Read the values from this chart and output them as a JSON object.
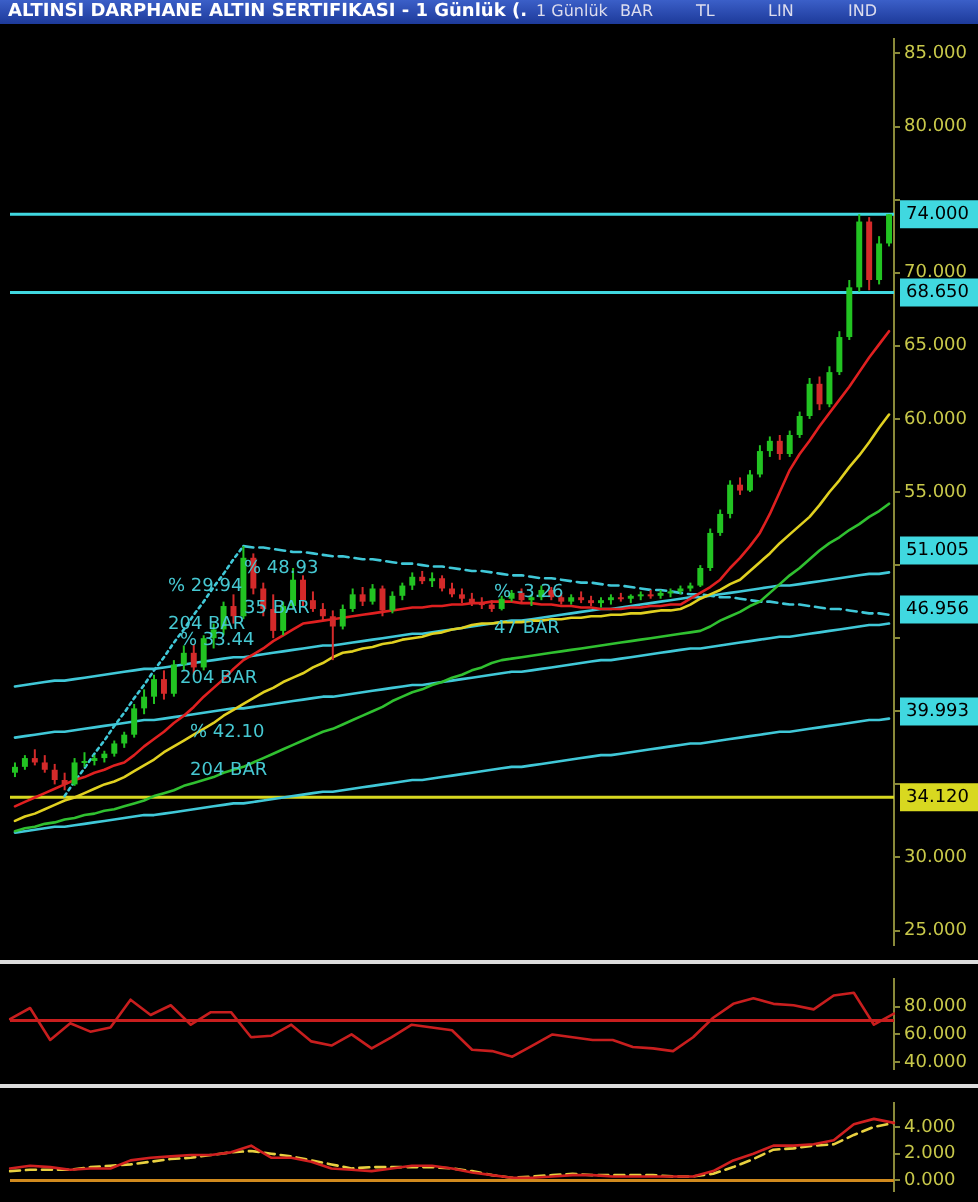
{
  "chart_data": [
    {
      "type": "candlestick",
      "title": "ALTINSI DARPHANE ALTIN SERTIFIKASI - 1 Günlük (.",
      "annotations": [
        "1 Günlük",
        "BAR",
        "TL",
        "LIN",
        "IND",
        "% 29.94",
        "204 BAR",
        "% 48.93",
        "35 BAR",
        "% 33.44",
        "204 BAR",
        "% 42.10",
        "204 BAR",
        "% -3.26",
        "47 BAR",
        {
          "text": "51.005",
          "y": 51.005
        },
        {
          "text": "46.956",
          "y": 46.956
        },
        {
          "text": "39.993",
          "y": 39.993
        }
      ],
      "categories": [
        null,
        null,
        null,
        null,
        null,
        null,
        null,
        null,
        null,
        null,
        null,
        null,
        null,
        null,
        null,
        null,
        null,
        null,
        null,
        null,
        null,
        null,
        null,
        null,
        null,
        null,
        null,
        null,
        null,
        null,
        null,
        null,
        null,
        null,
        null,
        null,
        null,
        null,
        null,
        null,
        null,
        null,
        null,
        null,
        null,
        null,
        null,
        null,
        null,
        null,
        null,
        null,
        null,
        null,
        null,
        null,
        null,
        null,
        null,
        null,
        null,
        null,
        null,
        null,
        null,
        null,
        null,
        null,
        null,
        null,
        null,
        null,
        null,
        null,
        null,
        null,
        null,
        null,
        null,
        null,
        null,
        null,
        null,
        null,
        null,
        null,
        null,
        null,
        null
      ],
      "ohlc": [
        [
          35.8,
          36.5,
          35.5,
          36.2
        ],
        [
          36.2,
          37.0,
          36.0,
          36.8
        ],
        [
          36.8,
          37.4,
          36.3,
          36.5
        ],
        [
          36.5,
          37.0,
          35.8,
          36.0
        ],
        [
          36.0,
          36.4,
          35.0,
          35.3
        ],
        [
          35.3,
          35.8,
          34.6,
          35.0
        ],
        [
          35.0,
          36.8,
          34.9,
          36.5
        ],
        [
          36.5,
          37.2,
          36.2,
          36.6
        ],
        [
          36.6,
          37.0,
          36.3,
          36.8
        ],
        [
          36.8,
          37.3,
          36.5,
          37.1
        ],
        [
          37.1,
          38.0,
          36.9,
          37.8
        ],
        [
          37.8,
          38.6,
          37.5,
          38.4
        ],
        [
          38.4,
          40.5,
          38.2,
          40.2
        ],
        [
          40.2,
          41.5,
          39.8,
          41.0
        ],
        [
          41.0,
          42.5,
          40.5,
          42.2
        ],
        [
          42.2,
          42.8,
          40.8,
          41.2
        ],
        [
          41.2,
          43.5,
          41.0,
          43.2
        ],
        [
          43.2,
          44.5,
          42.8,
          44.0
        ],
        [
          44.0,
          44.6,
          42.5,
          43.0
        ],
        [
          43.0,
          45.2,
          42.8,
          45.0
        ],
        [
          45.0,
          46.0,
          44.3,
          45.6
        ],
        [
          45.6,
          47.5,
          45.2,
          47.2
        ],
        [
          47.2,
          48.0,
          46.0,
          46.5
        ],
        [
          46.5,
          51.3,
          46.3,
          50.5
        ],
        [
          50.5,
          50.8,
          48.0,
          48.4
        ],
        [
          48.4,
          48.8,
          46.5,
          47.0
        ],
        [
          47.0,
          48.0,
          45.0,
          45.5
        ],
        [
          45.5,
          47.5,
          45.2,
          47.2
        ],
        [
          47.2,
          49.8,
          47.0,
          49.0
        ],
        [
          49.0,
          49.3,
          47.2,
          47.6
        ],
        [
          47.6,
          48.2,
          46.8,
          47.0
        ],
        [
          47.0,
          47.4,
          46.2,
          46.5
        ],
        [
          46.5,
          46.9,
          43.5,
          45.8
        ],
        [
          45.8,
          47.3,
          45.6,
          47.0
        ],
        [
          47.0,
          48.4,
          46.8,
          48.0
        ],
        [
          48.0,
          48.5,
          47.2,
          47.5
        ],
        [
          47.5,
          48.7,
          47.3,
          48.4
        ],
        [
          48.4,
          48.6,
          46.5,
          46.9
        ],
        [
          46.9,
          48.2,
          46.7,
          47.9
        ],
        [
          47.9,
          48.8,
          47.6,
          48.6
        ],
        [
          48.6,
          49.5,
          48.3,
          49.2
        ],
        [
          49.2,
          49.6,
          48.7,
          48.9
        ],
        [
          48.9,
          49.5,
          48.5,
          49.1
        ],
        [
          49.1,
          49.3,
          48.2,
          48.4
        ],
        [
          48.4,
          48.8,
          47.8,
          48.0
        ],
        [
          48.0,
          48.4,
          47.4,
          47.7
        ],
        [
          47.7,
          48.1,
          47.2,
          47.4
        ],
        [
          47.4,
          47.8,
          47.0,
          47.3
        ],
        [
          47.3,
          47.6,
          46.8,
          47.0
        ],
        [
          47.0,
          47.9,
          46.9,
          47.7
        ],
        [
          47.7,
          48.3,
          47.5,
          48.1
        ],
        [
          48.1,
          48.4,
          47.4,
          47.6
        ],
        [
          47.6,
          48.0,
          47.2,
          47.8
        ],
        [
          47.8,
          48.6,
          47.6,
          48.3
        ],
        [
          48.3,
          48.5,
          47.6,
          47.8
        ],
        [
          47.8,
          48.1,
          47.3,
          47.5
        ],
        [
          47.5,
          48.0,
          47.3,
          47.8
        ],
        [
          47.8,
          48.2,
          47.4,
          47.6
        ],
        [
          47.6,
          47.9,
          47.2,
          47.4
        ],
        [
          47.4,
          47.8,
          47.1,
          47.6
        ],
        [
          47.6,
          48.0,
          47.3,
          47.8
        ],
        [
          47.8,
          48.1,
          47.5,
          47.7
        ],
        [
          47.7,
          48.0,
          47.4,
          47.9
        ],
        [
          47.9,
          48.2,
          47.6,
          48.0
        ],
        [
          48.0,
          48.3,
          47.7,
          47.9
        ],
        [
          47.9,
          48.3,
          47.7,
          48.1
        ],
        [
          48.1,
          48.4,
          47.8,
          48.2
        ],
        [
          48.2,
          48.6,
          48.0,
          48.4
        ],
        [
          48.4,
          48.8,
          48.2,
          48.6
        ],
        [
          48.6,
          50.0,
          48.5,
          49.8
        ],
        [
          49.8,
          52.5,
          49.6,
          52.2
        ],
        [
          52.2,
          53.8,
          52.0,
          53.5
        ],
        [
          53.5,
          55.8,
          53.2,
          55.5
        ],
        [
          55.5,
          56.0,
          54.8,
          55.1
        ],
        [
          55.1,
          56.5,
          55.0,
          56.2
        ],
        [
          56.2,
          58.2,
          56.0,
          57.8
        ],
        [
          57.8,
          58.8,
          57.4,
          58.5
        ],
        [
          58.5,
          58.9,
          57.2,
          57.6
        ],
        [
          57.6,
          59.2,
          57.4,
          58.9
        ],
        [
          58.9,
          60.5,
          58.7,
          60.2
        ],
        [
          60.2,
          62.8,
          60.0,
          62.4
        ],
        [
          62.4,
          62.9,
          60.6,
          61.0
        ],
        [
          61.0,
          63.6,
          60.8,
          63.2
        ],
        [
          63.2,
          66.0,
          63.0,
          65.6
        ],
        [
          65.6,
          69.5,
          65.4,
          69.0
        ],
        [
          69.0,
          74.0,
          68.7,
          73.5
        ],
        [
          73.5,
          73.8,
          68.8,
          69.5
        ],
        [
          69.5,
          72.5,
          69.2,
          72.0
        ],
        [
          72.0,
          74.0,
          71.8,
          74.0
        ]
      ],
      "colors": [
        "#22c322",
        "#22c322",
        "#d42a2a",
        "#d42a2a",
        "#d42a2a",
        "#d42a2a",
        "#22c322",
        "#22c322",
        "#22c322",
        "#22c322",
        "#22c322",
        "#22c322",
        "#22c322",
        "#22c322",
        "#22c322",
        "#d42a2a",
        "#22c322",
        "#22c322",
        "#d42a2a",
        "#22c322",
        "#22c322",
        "#22c322",
        "#d42a2a",
        "#22c322",
        "#d42a2a",
        "#d42a2a",
        "#d42a2a",
        "#22c322",
        "#22c322",
        "#d42a2a",
        "#d42a2a",
        "#d42a2a",
        "#d42a2a",
        "#22c322",
        "#22c322",
        "#d42a2a",
        "#22c322",
        "#d42a2a",
        "#22c322",
        "#22c322",
        "#22c322",
        "#d42a2a",
        "#22c322",
        "#d42a2a",
        "#d42a2a",
        "#d42a2a",
        "#d42a2a",
        "#d42a2a",
        "#d42a2a",
        "#22c322",
        "#22c322",
        "#d42a2a",
        "#22c322",
        "#22c322",
        "#d42a2a",
        "#d42a2a",
        "#22c322",
        "#d42a2a",
        "#d42a2a",
        "#22c322",
        "#22c322",
        "#d42a2a",
        "#22c322",
        "#22c322",
        "#d42a2a",
        "#22c322",
        "#22c322",
        "#22c322",
        "#22c322",
        "#22c322",
        "#22c322",
        "#22c322",
        "#22c322",
        "#d42a2a",
        "#22c322",
        "#22c322",
        "#22c322",
        "#d42a2a",
        "#22c322",
        "#22c322",
        "#22c322",
        "#d42a2a",
        "#22c322",
        "#22c322",
        "#22c322",
        "#22c322",
        "#d42a2a",
        "#22c322",
        "#22c322"
      ],
      "series": [
        {
          "type": "line",
          "color": "#e02020",
          "values": [
            33.5,
            33.8,
            34.1,
            34.4,
            34.7,
            35.0,
            35.3,
            35.5,
            35.8,
            36.0,
            36.3,
            36.5,
            37.0,
            37.6,
            38.1,
            38.6,
            39.2,
            39.7,
            40.3,
            41.0,
            41.6,
            42.2,
            42.9,
            43.5,
            43.9,
            44.3,
            44.8,
            45.2,
            45.6,
            46.0,
            46.1,
            46.2,
            46.3,
            46.4,
            46.5,
            46.6,
            46.7,
            46.8,
            46.9,
            47.0,
            47.1,
            47.1,
            47.2,
            47.2,
            47.3,
            47.3,
            47.4,
            47.4,
            47.5,
            47.5,
            47.5,
            47.4,
            47.4,
            47.3,
            47.3,
            47.2,
            47.2,
            47.1,
            47.1,
            47.0,
            47.0,
            47.0,
            47.1,
            47.1,
            47.2,
            47.2,
            47.3,
            47.3,
            47.7,
            48.1,
            48.5,
            49.0,
            49.8,
            50.5,
            51.3,
            52.2,
            53.5,
            55.0,
            56.5,
            57.6,
            58.5,
            59.5,
            60.4,
            61.3,
            62.2,
            63.2,
            64.2,
            65.1,
            66.0
          ]
        },
        {
          "type": "line",
          "color": "#e0d020",
          "values": [
            32.5,
            32.8,
            33.0,
            33.3,
            33.6,
            33.9,
            34.1,
            34.4,
            34.7,
            35.0,
            35.2,
            35.5,
            35.9,
            36.3,
            36.7,
            37.2,
            37.6,
            38.0,
            38.4,
            38.8,
            39.2,
            39.7,
            40.1,
            40.5,
            40.9,
            41.3,
            41.6,
            42.0,
            42.3,
            42.6,
            43.0,
            43.3,
            43.7,
            44.0,
            44.1,
            44.3,
            44.4,
            44.6,
            44.7,
            44.9,
            45.0,
            45.1,
            45.3,
            45.4,
            45.6,
            45.7,
            45.9,
            46.0,
            46.0,
            46.1,
            46.1,
            46.1,
            46.2,
            46.2,
            46.3,
            46.3,
            46.4,
            46.4,
            46.5,
            46.5,
            46.6,
            46.6,
            46.7,
            46.7,
            46.8,
            46.9,
            46.9,
            47.0,
            47.3,
            47.7,
            48.0,
            48.3,
            48.7,
            49.0,
            49.6,
            50.2,
            50.8,
            51.5,
            52.1,
            52.7,
            53.3,
            54.1,
            55.0,
            55.8,
            56.7,
            57.5,
            58.4,
            59.4,
            60.3
          ]
        },
        {
          "type": "line",
          "color": "#30c030",
          "values": [
            31.8,
            32.0,
            32.1,
            32.3,
            32.4,
            32.6,
            32.7,
            32.9,
            33.0,
            33.2,
            33.3,
            33.5,
            33.7,
            33.9,
            34.2,
            34.4,
            34.6,
            34.9,
            35.1,
            35.3,
            35.5,
            35.8,
            36.0,
            36.2,
            36.5,
            36.8,
            37.1,
            37.4,
            37.7,
            38.0,
            38.3,
            38.6,
            38.8,
            39.1,
            39.4,
            39.7,
            40.0,
            40.3,
            40.7,
            41.0,
            41.3,
            41.5,
            41.8,
            42.0,
            42.3,
            42.5,
            42.8,
            43.0,
            43.3,
            43.5,
            43.6,
            43.7,
            43.8,
            43.9,
            44.0,
            44.1,
            44.2,
            44.3,
            44.4,
            44.5,
            44.6,
            44.7,
            44.8,
            44.9,
            45.0,
            45.1,
            45.2,
            45.3,
            45.4,
            45.5,
            45.8,
            46.2,
            46.5,
            46.8,
            47.2,
            47.5,
            48.1,
            48.7,
            49.3,
            49.8,
            50.4,
            51.0,
            51.5,
            51.9,
            52.4,
            52.8,
            53.3,
            53.7,
            54.2
          ]
        },
        {
          "type": "line",
          "color": "#40c8d8",
          "values": [
            41.7,
            41.8,
            41.9,
            42.0,
            42.1,
            42.1,
            42.2,
            42.3,
            42.4,
            42.5,
            42.6,
            42.7,
            42.8,
            42.9,
            42.9,
            43.0,
            43.1,
            43.2,
            43.3,
            43.4,
            43.5,
            43.6,
            43.7,
            43.7,
            43.8,
            43.9,
            44.0,
            44.1,
            44.2,
            44.3,
            44.4,
            44.5,
            44.5,
            44.6,
            44.7,
            44.8,
            44.9,
            45.0,
            45.1,
            45.2,
            45.3,
            45.3,
            45.4,
            45.5,
            45.6,
            45.7,
            45.8,
            45.9,
            46.0,
            46.1,
            46.2,
            46.2,
            46.3,
            46.4,
            46.5,
            46.6,
            46.7,
            46.8,
            46.9,
            47.0,
            47.0,
            47.1,
            47.2,
            47.3,
            47.4,
            47.5,
            47.6,
            47.7,
            47.8,
            47.8,
            47.9,
            48.0,
            48.1,
            48.2,
            48.3,
            48.4,
            48.5,
            48.6,
            48.6,
            48.7,
            48.8,
            48.9,
            49.0,
            49.1,
            49.2,
            49.3,
            49.4,
            49.4,
            49.5
          ]
        },
        {
          "type": "line",
          "color": "#40c8d8",
          "values": [
            38.2,
            38.3,
            38.4,
            38.5,
            38.6,
            38.6,
            38.7,
            38.8,
            38.9,
            39.0,
            39.1,
            39.2,
            39.3,
            39.4,
            39.4,
            39.5,
            39.6,
            39.7,
            39.8,
            39.9,
            40.0,
            40.1,
            40.2,
            40.2,
            40.3,
            40.4,
            40.5,
            40.6,
            40.7,
            40.8,
            40.9,
            41.0,
            41.0,
            41.1,
            41.2,
            41.3,
            41.4,
            41.5,
            41.6,
            41.7,
            41.8,
            41.8,
            41.9,
            42.0,
            42.1,
            42.2,
            42.3,
            42.4,
            42.5,
            42.6,
            42.7,
            42.7,
            42.8,
            42.9,
            43.0,
            43.1,
            43.2,
            43.3,
            43.4,
            43.5,
            43.5,
            43.6,
            43.7,
            43.8,
            43.9,
            44.0,
            44.1,
            44.2,
            44.3,
            44.3,
            44.4,
            44.5,
            44.6,
            44.7,
            44.8,
            44.9,
            45.0,
            45.1,
            45.1,
            45.2,
            45.3,
            45.4,
            45.5,
            45.6,
            45.7,
            45.8,
            45.9,
            45.9,
            46.0
          ]
        },
        {
          "type": "line",
          "color": "#40c8d8",
          "values": [
            31.7,
            31.8,
            31.9,
            32.0,
            32.1,
            32.1,
            32.2,
            32.3,
            32.4,
            32.5,
            32.6,
            32.7,
            32.8,
            32.9,
            32.9,
            33.0,
            33.1,
            33.2,
            33.3,
            33.4,
            33.5,
            33.6,
            33.7,
            33.7,
            33.8,
            33.9,
            34.0,
            34.1,
            34.2,
            34.3,
            34.4,
            34.5,
            34.5,
            34.6,
            34.7,
            34.8,
            34.9,
            35.0,
            35.1,
            35.2,
            35.3,
            35.3,
            35.4,
            35.5,
            35.6,
            35.7,
            35.8,
            35.9,
            36.0,
            36.1,
            36.2,
            36.2,
            36.3,
            36.4,
            36.5,
            36.6,
            36.7,
            36.8,
            36.9,
            37.0,
            37.0,
            37.1,
            37.2,
            37.3,
            37.4,
            37.5,
            37.6,
            37.7,
            37.8,
            37.8,
            37.9,
            38.0,
            38.1,
            38.2,
            38.3,
            38.4,
            38.5,
            38.6,
            38.6,
            38.7,
            38.8,
            38.9,
            39.0,
            39.1,
            39.2,
            39.3,
            39.4,
            39.4,
            39.5
          ]
        },
        {
          "type": "line",
          "color": "#40c8d8",
          "line_style": "dashed",
          "values": [
            null,
            null,
            null,
            null,
            null,
            null,
            null,
            null,
            null,
            null,
            null,
            null,
            null,
            null,
            null,
            null,
            null,
            null,
            null,
            null,
            null,
            null,
            null,
            51.3,
            51.2,
            51.2,
            51.1,
            51.0,
            50.9,
            50.9,
            50.8,
            50.7,
            50.6,
            50.6,
            50.5,
            50.4,
            50.4,
            50.3,
            50.2,
            50.1,
            50.1,
            50.0,
            49.9,
            49.9,
            49.8,
            49.7,
            49.6,
            49.6,
            49.5,
            49.4,
            49.3,
            49.3,
            49.2,
            49.1,
            49.1,
            49.0,
            48.9,
            48.8,
            48.8,
            48.7,
            48.6,
            48.6,
            48.5,
            48.4,
            48.3,
            48.3,
            48.2,
            48.1,
            48.0,
            48.0,
            47.9,
            47.8,
            47.8,
            47.7,
            47.6,
            47.5,
            47.5,
            47.4,
            47.3,
            47.3,
            47.2,
            47.1,
            47.0,
            47.0,
            46.9,
            46.8,
            46.7,
            46.7,
            46.6
          ]
        },
        {
          "type": "line",
          "color": "#40c8d8",
          "line_style": "dotted",
          "values": [
            null,
            null,
            null,
            null,
            null,
            34.2,
            35.2,
            36.1,
            37.1,
            38.0,
            39.0,
            39.9,
            40.9,
            41.8,
            42.8,
            43.7,
            44.7,
            45.6,
            46.6,
            47.5,
            48.5,
            49.4,
            50.4,
            51.3,
            null,
            null,
            null,
            null,
            null,
            null,
            null,
            null,
            null,
            null,
            null,
            null,
            null,
            null,
            null,
            null,
            null,
            null,
            null,
            null,
            null,
            null,
            null,
            null,
            null,
            null,
            null,
            null,
            null,
            null,
            null,
            null,
            null,
            null,
            null,
            null,
            null,
            null,
            null,
            null,
            null,
            null,
            null,
            null,
            null,
            null,
            null,
            null,
            null,
            null,
            null,
            null,
            null,
            null,
            null,
            null,
            null,
            null,
            null,
            null,
            null,
            null,
            null,
            null,
            null
          ]
        }
      ],
      "ref_lines": [
        {
          "axis": "y",
          "value": 74,
          "label": "74.000",
          "color": "#40d8e0"
        },
        {
          "axis": "y",
          "value": 68.65,
          "label": "68.650",
          "color": "#40d8e0"
        },
        {
          "axis": "y",
          "value": 34.12,
          "label": "34.120",
          "color": "#d8d820"
        }
      ],
      "ylim": [
        24,
        86
      ],
      "yticks": [
        {
          "value": 25,
          "label": "25.000"
        },
        {
          "value": 30,
          "label": "30.000"
        },
        {
          "value": 35,
          "label": null
        },
        {
          "value": 40,
          "label": null
        },
        {
          "value": 45,
          "label": null
        },
        {
          "value": 50,
          "label": null
        },
        {
          "value": 55,
          "label": "55.000"
        },
        {
          "value": 60,
          "label": "60.000"
        },
        {
          "value": 65,
          "label": "65.000"
        },
        {
          "value": 70,
          "label": "70.000"
        },
        {
          "value": 75,
          "label": null
        },
        {
          "value": 80,
          "label": "80.000"
        },
        {
          "value": 85,
          "label": "85.000"
        }
      ],
      "tick_labels": "y",
      "legend": false,
      "grid": false,
      "marker": "none"
    },
    {
      "type": "line",
      "categories": [
        null,
        null,
        null,
        null,
        null,
        null,
        null,
        null,
        null,
        null,
        null,
        null,
        null,
        null,
        null,
        null,
        null,
        null,
        null,
        null,
        null,
        null,
        null,
        null,
        null,
        null,
        null,
        null,
        null,
        null,
        null,
        null,
        null,
        null,
        null,
        null,
        null,
        null,
        null,
        null,
        null,
        null,
        null,
        null,
        null
      ],
      "series": [
        {
          "color": "#c81e1e",
          "values": [
            71,
            79,
            56,
            68,
            62,
            65,
            85,
            74,
            81,
            67,
            76,
            76,
            58,
            59,
            67,
            55,
            52,
            60,
            50,
            58,
            67,
            65,
            63,
            49,
            48,
            44,
            52,
            60,
            58,
            56,
            56,
            51,
            50,
            48,
            58,
            72,
            82,
            86,
            82,
            81,
            78,
            88,
            90,
            67,
            75
          ]
        }
      ],
      "ref_lines": [
        {
          "axis": "y",
          "value": 70,
          "color": "#c81e1e"
        }
      ],
      "ylim": [
        35,
        100
      ],
      "yticks": [
        {
          "value": 40,
          "label": "40.000"
        },
        {
          "value": 60,
          "label": "60.000"
        },
        {
          "value": 80,
          "label": "80.000"
        }
      ],
      "tick_labels": "y",
      "legend": false,
      "grid": false,
      "marker": "none"
    },
    {
      "type": "line",
      "categories": [
        null,
        null,
        null,
        null,
        null,
        null,
        null,
        null,
        null,
        null,
        null,
        null,
        null,
        null,
        null,
        null,
        null,
        null,
        null,
        null,
        null,
        null,
        null,
        null,
        null,
        null,
        null,
        null,
        null,
        null,
        null,
        null,
        null,
        null,
        null,
        null,
        null,
        null,
        null,
        null,
        null,
        null,
        null,
        null,
        null
      ],
      "series": [
        {
          "color": "#d02020",
          "values": [
            0.9,
            1.1,
            1.0,
            0.8,
            0.9,
            0.9,
            1.5,
            1.7,
            1.8,
            1.9,
            1.9,
            2.1,
            2.6,
            1.7,
            1.7,
            1.4,
            0.9,
            0.8,
            0.7,
            0.9,
            1.1,
            1.1,
            0.9,
            0.6,
            0.4,
            0.2,
            0.2,
            0.3,
            0.4,
            0.4,
            0.3,
            0.3,
            0.3,
            0.3,
            0.3,
            0.7,
            1.5,
            2.0,
            2.6,
            2.6,
            2.7,
            3.0,
            4.2,
            4.6,
            4.3
          ]
        },
        {
          "color": "#e8d040",
          "line_style": "dashed",
          "values": [
            0.7,
            0.8,
            0.8,
            0.8,
            1.0,
            1.1,
            1.2,
            1.4,
            1.6,
            1.7,
            1.9,
            2.1,
            2.2,
            2.0,
            1.8,
            1.5,
            1.2,
            0.9,
            1.0,
            1.0,
            1.0,
            1.0,
            0.9,
            0.7,
            0.4,
            0.2,
            0.3,
            0.4,
            0.5,
            0.4,
            0.4,
            0.4,
            0.4,
            0.3,
            0.3,
            0.5,
            1.0,
            1.6,
            2.3,
            2.4,
            2.6,
            2.7,
            3.4,
            4.0,
            4.3
          ]
        }
      ],
      "ref_lines": [
        {
          "axis": "y",
          "value": 0,
          "color": "#d08a1e"
        }
      ],
      "ylim": [
        -0.8,
        5.8
      ],
      "yticks": [
        {
          "value": 0,
          "label": "0.000"
        },
        {
          "value": 2,
          "label": "2.000"
        },
        {
          "value": 4,
          "label": "4.000"
        }
      ],
      "tick_labels": "y",
      "legend": false,
      "grid": false,
      "marker": "none"
    }
  ]
}
